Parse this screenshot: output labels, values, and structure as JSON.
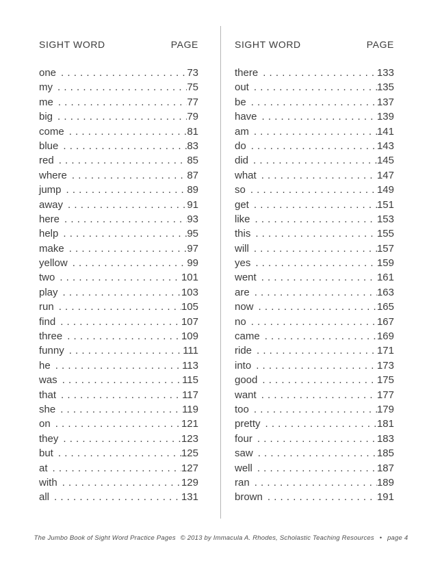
{
  "document": {
    "colors": {
      "text": "#3b3b3b",
      "divider": "#b5b5b5",
      "footer_text": "#4d4d4d"
    },
    "columns": [
      {
        "header_word": "SIGHT WORD",
        "header_page": "PAGE",
        "entries": [
          {
            "word": "one",
            "page": "73"
          },
          {
            "word": "my",
            "page": "75"
          },
          {
            "word": "me",
            "page": "77"
          },
          {
            "word": "big",
            "page": "79"
          },
          {
            "word": "come",
            "page": "81"
          },
          {
            "word": "blue",
            "page": "83"
          },
          {
            "word": "red",
            "page": "85"
          },
          {
            "word": "where",
            "page": "87"
          },
          {
            "word": "jump",
            "page": "89"
          },
          {
            "word": "away",
            "page": "91"
          },
          {
            "word": "here",
            "page": "93"
          },
          {
            "word": "help",
            "page": "95"
          },
          {
            "word": "make",
            "page": "97"
          },
          {
            "word": "yellow",
            "page": "99"
          },
          {
            "word": "two",
            "page": "101"
          },
          {
            "word": "play",
            "page": "103"
          },
          {
            "word": "run",
            "page": "105"
          },
          {
            "word": "find",
            "page": "107"
          },
          {
            "word": "three",
            "page": "109"
          },
          {
            "word": "funny",
            "page": "111"
          },
          {
            "word": "he",
            "page": "113"
          },
          {
            "word": "was",
            "page": "115"
          },
          {
            "word": "that",
            "page": "117"
          },
          {
            "word": "she",
            "page": "119"
          },
          {
            "word": "on",
            "page": "121"
          },
          {
            "word": "they",
            "page": "123"
          },
          {
            "word": "but",
            "page": "125"
          },
          {
            "word": "at",
            "page": "127"
          },
          {
            "word": "with",
            "page": "129"
          },
          {
            "word": "all",
            "page": "131"
          }
        ]
      },
      {
        "header_word": "SIGHT WORD",
        "header_page": "PAGE",
        "entries": [
          {
            "word": "there",
            "page": "133"
          },
          {
            "word": "out",
            "page": "135"
          },
          {
            "word": "be",
            "page": "137"
          },
          {
            "word": "have",
            "page": "139"
          },
          {
            "word": "am",
            "page": "141"
          },
          {
            "word": "do",
            "page": "143"
          },
          {
            "word": "did",
            "page": "145"
          },
          {
            "word": "what",
            "page": "147"
          },
          {
            "word": "so",
            "page": "149"
          },
          {
            "word": "get",
            "page": "151"
          },
          {
            "word": "like",
            "page": "153"
          },
          {
            "word": "this",
            "page": "155"
          },
          {
            "word": "will",
            "page": "157"
          },
          {
            "word": "yes",
            "page": "159"
          },
          {
            "word": "went",
            "page": "161"
          },
          {
            "word": "are",
            "page": "163"
          },
          {
            "word": "now",
            "page": "165"
          },
          {
            "word": "no",
            "page": "167"
          },
          {
            "word": "came",
            "page": "169"
          },
          {
            "word": "ride",
            "page": "171"
          },
          {
            "word": "into",
            "page": "173"
          },
          {
            "word": "good",
            "page": "175"
          },
          {
            "word": "want",
            "page": "177"
          },
          {
            "word": "too",
            "page": "179"
          },
          {
            "word": "pretty",
            "page": "181"
          },
          {
            "word": "four",
            "page": "183"
          },
          {
            "word": "saw",
            "page": "185"
          },
          {
            "word": "well",
            "page": "187"
          },
          {
            "word": "ran",
            "page": "189"
          },
          {
            "word": "brown",
            "page": "191"
          }
        ]
      }
    ],
    "footer": {
      "book_title": "The Jumbo Book of Sight Word Practice Pages",
      "copyright": "© 2013  by Immacula A. Rhodes, Scholastic Teaching Resources",
      "separator": "•",
      "page_label": "page 4"
    }
  }
}
